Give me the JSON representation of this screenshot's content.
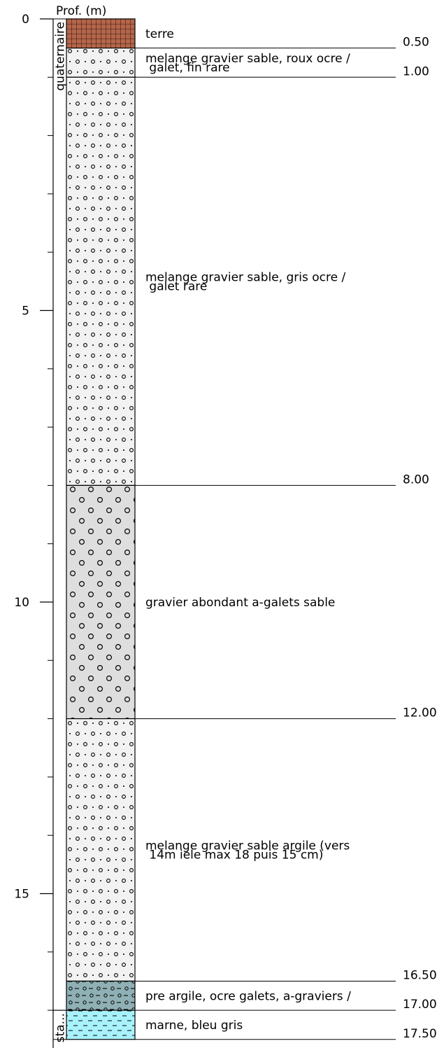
{
  "axis": {
    "label": "Prof. (m)",
    "max_depth": 18,
    "major_ticks": [
      0,
      5,
      10,
      15
    ],
    "major_labels": [
      "0",
      "5",
      "10",
      "15"
    ],
    "minor_step": 1
  },
  "stratigraphy": [
    {
      "label": "quaternaire",
      "top": 0,
      "bottom": 17.0
    },
    {
      "label": "sta...",
      "top": 17.0,
      "bottom": 17.5
    }
  ],
  "layers": [
    {
      "top": 0.0,
      "bottom": 0.5,
      "pattern": "soil-grid",
      "fill": "#b5654a",
      "description": [
        "terre"
      ],
      "depth_label": "0.50"
    },
    {
      "top": 0.5,
      "bottom": 1.0,
      "pattern": "gravel-sand",
      "fill": "#f2f2f2",
      "description": [
        "melange gravier sable, roux ocre /",
        " galet, fin rare"
      ],
      "depth_label": "1.00"
    },
    {
      "top": 1.0,
      "bottom": 8.0,
      "pattern": "gravel-sand",
      "fill": "#f2f2f2",
      "description": [
        "melange gravier sable, gris ocre /",
        " galet rare"
      ],
      "depth_label": "8.00"
    },
    {
      "top": 8.0,
      "bottom": 12.0,
      "pattern": "gravel",
      "fill": "#dedede",
      "description": [
        "gravier abondant a-galets sable"
      ],
      "depth_label": "12.00"
    },
    {
      "top": 12.0,
      "bottom": 16.5,
      "pattern": "gravel-sand",
      "fill": "#f2f2f2",
      "description": [
        "melange gravier sable argile (vers",
        " 14m iele max 18 puis 15 cm)"
      ],
      "depth_label": "16.50"
    },
    {
      "top": 16.5,
      "bottom": 17.0,
      "pattern": "clay-gravel",
      "fill": "#8fb0b4",
      "description": [
        "pre argile, ocre galets, a-graviers /"
      ],
      "depth_label": "17.00"
    },
    {
      "top": 17.0,
      "bottom": 17.5,
      "pattern": "marl",
      "fill": "#a8f2fb",
      "description": [
        "marne, bleu gris"
      ],
      "depth_label": "17.50"
    }
  ],
  "colors": {
    "line": "#000000",
    "soil": "#b5654a",
    "gravel_sand": "#f2f2f2",
    "gravel": "#dedede",
    "clay_gravel": "#8fb0b4",
    "marl": "#a8f2fb"
  }
}
